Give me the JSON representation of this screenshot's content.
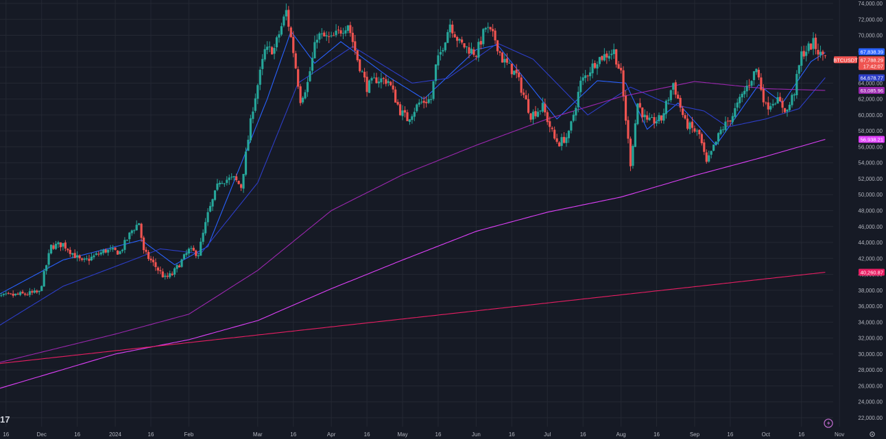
{
  "chart_data": {
    "type": "candlestick",
    "symbol": "BTCUSDT",
    "last_price": "67,788.29",
    "countdown": "17:42:07",
    "ylim": [
      21000,
      74500
    ],
    "y_ticks": [
      22000,
      24000,
      26000,
      28000,
      30000,
      32000,
      34000,
      36000,
      38000,
      40000,
      42000,
      44000,
      46000,
      48000,
      50000,
      52000,
      54000,
      56000,
      58000,
      60000,
      62000,
      64000,
      66000,
      68000,
      70000,
      72000,
      74000
    ],
    "y_tick_labels": [
      "22,000.00",
      "24,000.00",
      "26,000.00",
      "28,000.00",
      "30,000.00",
      "32,000.00",
      "34,000.00",
      "36,000.00",
      "38,000.00",
      "40,000.00",
      "42,000.00",
      "44,000.00",
      "46,000.00",
      "48,000.00",
      "50,000.00",
      "52,000.00",
      "54,000.00",
      "56,000.00",
      "58,000.00",
      "60,000.00",
      "62,000.00",
      "64,000.00",
      "66,000.00",
      "68,000.00",
      "70,000.00",
      "72,000.00",
      "74,000.00"
    ],
    "x_start": "2023-11-10",
    "x_end": "2024-11-05",
    "x_ticks": [
      {
        "date": "2023-11-16",
        "label": "16"
      },
      {
        "date": "2023-12-01",
        "label": "Dec"
      },
      {
        "date": "2023-12-16",
        "label": "16"
      },
      {
        "date": "2024-01-01",
        "label": "2024"
      },
      {
        "date": "2024-01-16",
        "label": "16"
      },
      {
        "date": "2024-02-01",
        "label": "Feb"
      },
      {
        "date": "2024-03-01",
        "label": "Mar"
      },
      {
        "date": "2024-03-16",
        "label": "16"
      },
      {
        "date": "2024-04-01",
        "label": "Apr"
      },
      {
        "date": "2024-04-16",
        "label": "16"
      },
      {
        "date": "2024-05-01",
        "label": "May"
      },
      {
        "date": "2024-05-16",
        "label": "16"
      },
      {
        "date": "2024-06-01",
        "label": "Jun"
      },
      {
        "date": "2024-06-16",
        "label": "16"
      },
      {
        "date": "2024-07-01",
        "label": "Jul"
      },
      {
        "date": "2024-07-16",
        "label": "16"
      },
      {
        "date": "2024-08-01",
        "label": "Aug"
      },
      {
        "date": "2024-08-16",
        "label": "16"
      },
      {
        "date": "2024-09-01",
        "label": "Sep"
      },
      {
        "date": "2024-09-16",
        "label": "16"
      },
      {
        "date": "2024-10-01",
        "label": "Oct"
      },
      {
        "date": "2024-10-16",
        "label": "16"
      },
      {
        "date": "2024-11-01",
        "label": "Nov"
      }
    ],
    "close_keypoints": [
      [
        "2023-11-10",
        37100
      ],
      [
        "2023-11-20",
        37400
      ],
      [
        "2023-11-30",
        37700
      ],
      [
        "2023-12-05",
        43500
      ],
      [
        "2023-12-10",
        43800
      ],
      [
        "2023-12-18",
        41500
      ],
      [
        "2023-12-28",
        43000
      ],
      [
        "2024-01-03",
        42800
      ],
      [
        "2024-01-08",
        45500
      ],
      [
        "2024-01-11",
        46500
      ],
      [
        "2024-01-13",
        42800
      ],
      [
        "2024-01-22",
        39500
      ],
      [
        "2024-01-25",
        40000
      ],
      [
        "2024-02-01",
        43000
      ],
      [
        "2024-02-05",
        42600
      ],
      [
        "2024-02-09",
        47500
      ],
      [
        "2024-02-14",
        51800
      ],
      [
        "2024-02-20",
        52000
      ],
      [
        "2024-02-23",
        51000
      ],
      [
        "2024-02-28",
        61000
      ],
      [
        "2024-03-04",
        68000
      ],
      [
        "2024-03-08",
        68300
      ],
      [
        "2024-03-13",
        73000
      ],
      [
        "2024-03-16",
        68000
      ],
      [
        "2024-03-19",
        62000
      ],
      [
        "2024-03-22",
        64000
      ],
      [
        "2024-03-26",
        70000
      ],
      [
        "2024-04-01",
        69500
      ],
      [
        "2024-04-08",
        71500
      ],
      [
        "2024-04-12",
        67000
      ],
      [
        "2024-04-16",
        63500
      ],
      [
        "2024-04-20",
        64500
      ],
      [
        "2024-04-25",
        64300
      ],
      [
        "2024-04-30",
        60500
      ],
      [
        "2024-05-03",
        59500
      ],
      [
        "2024-05-08",
        61500
      ],
      [
        "2024-05-13",
        62000
      ],
      [
        "2024-05-15",
        66000
      ],
      [
        "2024-05-21",
        71500
      ],
      [
        "2024-05-25",
        69000
      ],
      [
        "2024-06-01",
        67700
      ],
      [
        "2024-06-05",
        71000
      ],
      [
        "2024-06-09",
        69500
      ],
      [
        "2024-06-12",
        67000
      ],
      [
        "2024-06-18",
        65000
      ],
      [
        "2024-06-24",
        60000
      ],
      [
        "2024-06-29",
        61000
      ],
      [
        "2024-07-04",
        57000
      ],
      [
        "2024-07-06",
        56500
      ],
      [
        "2024-07-10",
        57500
      ],
      [
        "2024-07-15",
        64000
      ],
      [
        "2024-07-22",
        67000
      ],
      [
        "2024-07-29",
        68000
      ],
      [
        "2024-08-01",
        65000
      ],
      [
        "2024-08-05",
        54000
      ],
      [
        "2024-08-08",
        61500
      ],
      [
        "2024-08-12",
        59000
      ],
      [
        "2024-08-18",
        59500
      ],
      [
        "2024-08-23",
        64000
      ],
      [
        "2024-08-28",
        59000
      ],
      [
        "2024-09-03",
        57500
      ],
      [
        "2024-09-06",
        53800
      ],
      [
        "2024-09-12",
        58000
      ],
      [
        "2024-09-17",
        60000
      ],
      [
        "2024-09-22",
        63000
      ],
      [
        "2024-09-27",
        65800
      ],
      [
        "2024-10-01",
        61000
      ],
      [
        "2024-10-05",
        62000
      ],
      [
        "2024-10-10",
        60500
      ],
      [
        "2024-10-13",
        63000
      ],
      [
        "2024-10-16",
        67600
      ],
      [
        "2024-10-21",
        69000
      ],
      [
        "2024-10-24",
        67500
      ],
      [
        "2024-10-26",
        67788
      ]
    ],
    "series": [
      {
        "name": "",
        "color": "#2962ff",
        "last_label": "67,838.39",
        "points": [
          [
            "2023-11-10",
            37000
          ],
          [
            "2023-12-10",
            41800
          ],
          [
            "2024-01-12",
            44300
          ],
          [
            "2024-01-26",
            41200
          ],
          [
            "2024-02-09",
            43500
          ],
          [
            "2024-03-05",
            62000
          ],
          [
            "2024-03-15",
            70500
          ],
          [
            "2024-03-25",
            66500
          ],
          [
            "2024-04-05",
            69200
          ],
          [
            "2024-04-25",
            64800
          ],
          [
            "2024-05-10",
            62000
          ],
          [
            "2024-06-01",
            68200
          ],
          [
            "2024-06-10",
            68800
          ],
          [
            "2024-07-05",
            59500
          ],
          [
            "2024-07-22",
            64300
          ],
          [
            "2024-08-03",
            64000
          ],
          [
            "2024-08-12",
            58200
          ],
          [
            "2024-08-25",
            61500
          ],
          [
            "2024-09-10",
            56200
          ],
          [
            "2024-09-28",
            63800
          ],
          [
            "2024-10-08",
            61500
          ],
          [
            "2024-10-20",
            66700
          ],
          [
            "2024-10-26",
            67838
          ]
        ]
      },
      {
        "name": "",
        "color": "#2d3ec8",
        "last_label": "64,678.77",
        "points": [
          [
            "2023-11-10",
            33000
          ],
          [
            "2023-12-10",
            38500
          ],
          [
            "2024-01-10",
            42000
          ],
          [
            "2024-01-20",
            43200
          ],
          [
            "2024-02-06",
            42600
          ],
          [
            "2024-03-01",
            51500
          ],
          [
            "2024-03-18",
            64000
          ],
          [
            "2024-04-10",
            68600
          ],
          [
            "2024-05-05",
            64000
          ],
          [
            "2024-05-20",
            64600
          ],
          [
            "2024-06-10",
            69000
          ],
          [
            "2024-06-25",
            67000
          ],
          [
            "2024-07-18",
            60000
          ],
          [
            "2024-08-05",
            63500
          ],
          [
            "2024-08-20",
            61500
          ],
          [
            "2024-09-05",
            60500
          ],
          [
            "2024-09-15",
            58500
          ],
          [
            "2024-10-01",
            59500
          ],
          [
            "2024-10-15",
            60800
          ],
          [
            "2024-10-26",
            64679
          ]
        ]
      },
      {
        "name": "",
        "color": "#9c27b0",
        "last_label": "63,085.96",
        "points": [
          [
            "2023-11-10",
            28700
          ],
          [
            "2024-01-01",
            32500
          ],
          [
            "2024-02-01",
            35000
          ],
          [
            "2024-03-01",
            40500
          ],
          [
            "2024-04-01",
            48000
          ],
          [
            "2024-05-01",
            52500
          ],
          [
            "2024-06-01",
            56200
          ],
          [
            "2024-07-01",
            59500
          ],
          [
            "2024-08-01",
            62300
          ],
          [
            "2024-09-01",
            64200
          ],
          [
            "2024-10-01",
            63300
          ],
          [
            "2024-10-26",
            63086
          ]
        ]
      },
      {
        "name": "",
        "color": "#e040fb",
        "last_label": "56,938.21",
        "points": [
          [
            "2023-11-10",
            25400
          ],
          [
            "2024-01-01",
            30000
          ],
          [
            "2024-02-01",
            31800
          ],
          [
            "2024-03-01",
            34200
          ],
          [
            "2024-04-01",
            38200
          ],
          [
            "2024-05-01",
            41800
          ],
          [
            "2024-06-01",
            45400
          ],
          [
            "2024-07-01",
            47800
          ],
          [
            "2024-08-01",
            49700
          ],
          [
            "2024-09-01",
            52400
          ],
          [
            "2024-10-01",
            54800
          ],
          [
            "2024-10-26",
            56938
          ]
        ]
      },
      {
        "name": "",
        "color": "#e91e63",
        "last_label": "40,260.87",
        "points": [
          [
            "2023-11-10",
            28700
          ],
          [
            "2024-10-26",
            40261
          ]
        ]
      }
    ],
    "grid": true,
    "legend": "none"
  },
  "colors": {
    "background": "#161a25",
    "grid": "#242833",
    "up": "#26a69a",
    "down": "#ef5350",
    "axis_text": "#b2b5be"
  },
  "logo_text": "17",
  "icon": "lightning-icon"
}
